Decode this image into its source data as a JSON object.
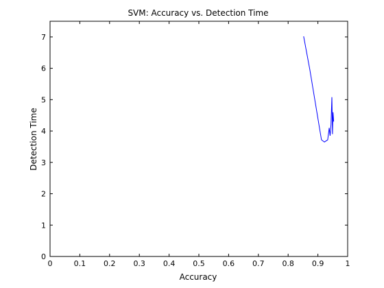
{
  "chart_data": {
    "type": "line",
    "title": "SVM: Accuracy vs. Detection Time",
    "xlabel": "Accuracy",
    "ylabel": "Detection Time",
    "xlim": [
      0,
      1
    ],
    "ylim": [
      0,
      7.5
    ],
    "x_ticks": [
      "0",
      "0.1",
      "0.2",
      "0.3",
      "0.4",
      "0.5",
      "0.6",
      "0.7",
      "0.8",
      "0.9",
      "1"
    ],
    "y_ticks": [
      "0",
      "1",
      "2",
      "3",
      "4",
      "5",
      "6",
      "7"
    ],
    "grid": false,
    "series": [
      {
        "color": "#0000ff",
        "x": [
          0.852,
          0.873,
          0.893,
          0.912,
          0.922,
          0.933,
          0.938,
          0.941,
          0.944,
          0.947,
          0.949,
          0.951,
          0.953
        ],
        "y": [
          7.02,
          5.95,
          4.8,
          3.72,
          3.65,
          3.72,
          4.1,
          3.85,
          4.2,
          5.08,
          3.9,
          4.6,
          4.3
        ]
      }
    ]
  }
}
